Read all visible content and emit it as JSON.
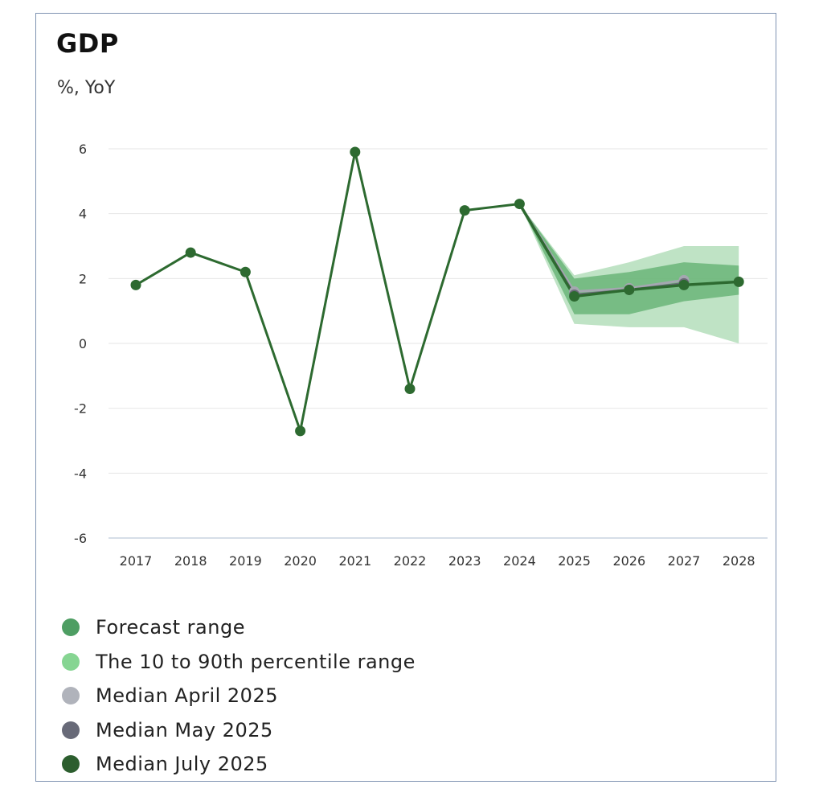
{
  "chart_data": {
    "type": "line",
    "title": "GDP",
    "subtitle": "%, YoY",
    "x": [
      "2017",
      "2018",
      "2019",
      "2020",
      "2021",
      "2022",
      "2023",
      "2024",
      "2025",
      "2026",
      "2027",
      "2028"
    ],
    "ylim": [
      -6,
      6
    ],
    "yticks": [
      6,
      4,
      2,
      0,
      -2,
      -4,
      -6
    ],
    "ytick_labels": [
      "6",
      "4",
      "2",
      "0",
      "-2",
      "-4",
      "-6"
    ],
    "grid": true,
    "legend_position": "bottom",
    "history": {
      "x": [
        "2017",
        "2018",
        "2019",
        "2020",
        "2021",
        "2022",
        "2023",
        "2024"
      ],
      "values": [
        1.8,
        2.8,
        2.2,
        -2.7,
        5.9,
        -1.4,
        4.1,
        4.3
      ]
    },
    "forecast_range": {
      "name": "Forecast range",
      "x": [
        "2024",
        "2025",
        "2026",
        "2027",
        "2028"
      ],
      "low": [
        4.3,
        0.9,
        0.9,
        1.3,
        1.5
      ],
      "high": [
        4.3,
        2.0,
        2.2,
        2.5,
        2.4
      ]
    },
    "percentile_range": {
      "name": "The 10 to 90th percentile range",
      "x": [
        "2024",
        "2025",
        "2026",
        "2027",
        "2028"
      ],
      "low": [
        4.3,
        0.6,
        0.5,
        0.5,
        0.0
      ],
      "high": [
        4.3,
        2.1,
        2.5,
        3.0,
        3.0
      ]
    },
    "series": [
      {
        "name": "Median April 2025",
        "x": [
          "2024",
          "2025",
          "2026",
          "2027"
        ],
        "values": [
          4.3,
          1.6,
          1.7,
          1.95
        ]
      },
      {
        "name": "Median May 2025",
        "x": [
          "2024",
          "2025",
          "2026",
          "2027"
        ],
        "values": [
          4.3,
          1.5,
          1.65,
          1.85
        ]
      },
      {
        "name": "Median July 2025",
        "x": [
          "2024",
          "2025",
          "2026",
          "2027",
          "2028"
        ],
        "values": [
          4.3,
          1.45,
          1.65,
          1.8,
          1.9
        ]
      }
    ],
    "colors": {
      "history": "#2d6a30",
      "forecast_range": "#5faf6e",
      "percentile_range": "#a9d9b1",
      "median_april": "#a4a7b0",
      "median_may": "#6b6b78",
      "median_july": "#2d6a30",
      "legend_forecast_range": "#4e9e63",
      "legend_percentile_range": "#86d592",
      "legend_median_april": "#b0b3bb",
      "legend_median_may": "#686a78",
      "legend_median_july": "#2c5e2e",
      "grid": "#e6e6e6",
      "axis": "#c9d3e0"
    }
  },
  "legend": [
    {
      "label": "Forecast range",
      "color": "#4e9e63"
    },
    {
      "label": "The 10 to 90th percentile range",
      "color": "#86d592"
    },
    {
      "label": "Median April 2025",
      "color": "#b0b3bb"
    },
    {
      "label": "Median May 2025",
      "color": "#686a78"
    },
    {
      "label": "Median July 2025",
      "color": "#2c5e2e"
    }
  ]
}
